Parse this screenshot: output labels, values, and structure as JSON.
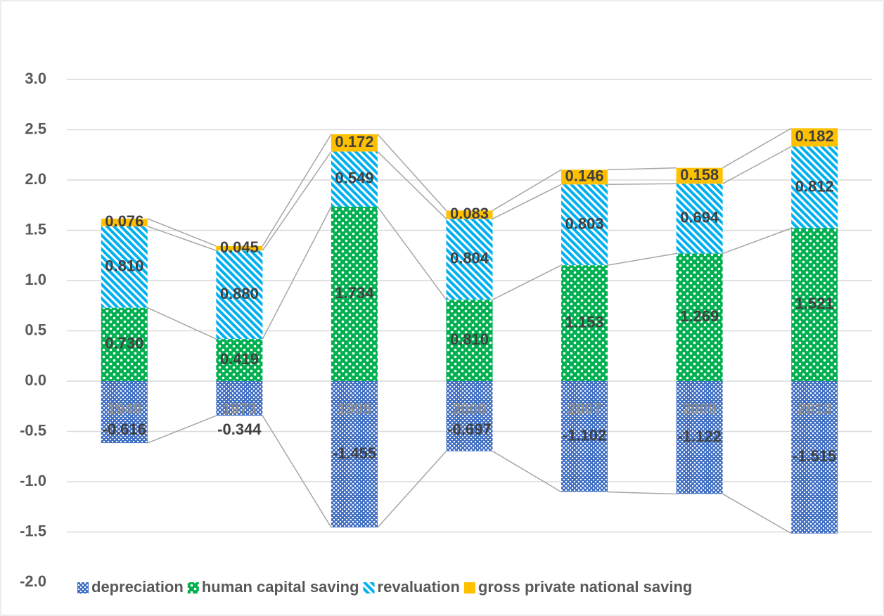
{
  "chart_data": {
    "type": "stacked-bar",
    "categories": [
      "1949",
      "1973",
      "1995",
      "2000",
      "2007",
      "2009",
      "2013"
    ],
    "series": [
      {
        "name": "depreciation",
        "color": "#4472c4",
        "values": [
          -0.616,
          -0.344,
          -1.455,
          -0.697,
          -1.102,
          -1.122,
          -1.515
        ],
        "value_labels": [
          "-0.616",
          "-0.344",
          "-1.455",
          "-0.697",
          "-1.102",
          "-1.122",
          "-1.515"
        ]
      },
      {
        "name": "human capital saving",
        "color": "#00b050",
        "values": [
          0.73,
          0.419,
          1.734,
          0.81,
          1.153,
          1.269,
          1.521
        ],
        "value_labels": [
          "0.730",
          "0.419",
          "1.734",
          "0.810",
          "1.153",
          "1.269",
          "1.521"
        ]
      },
      {
        "name": "revaluation",
        "color": "#00b0f0",
        "values": [
          0.81,
          0.88,
          0.549,
          0.804,
          0.803,
          0.694,
          0.812
        ],
        "value_labels": [
          "0.810",
          "0.880",
          "0.549",
          "0.804",
          "0.803",
          "0.694",
          "0.812"
        ]
      },
      {
        "name": "gross private national saving",
        "color": "#ffc000",
        "values": [
          0.076,
          0.045,
          0.172,
          0.083,
          0.146,
          0.158,
          0.182
        ],
        "value_labels": [
          "0.076",
          "0.045",
          "0.172",
          "0.083",
          "0.146",
          "0.158",
          "0.182"
        ]
      }
    ],
    "ylim": [
      -2.0,
      3.0
    ],
    "yticks": [
      {
        "value": -2,
        "label": "-2.0"
      },
      {
        "value": -1.5,
        "label": "-1.5"
      },
      {
        "value": -1,
        "label": "-1.0"
      },
      {
        "value": -0.5,
        "label": "-0.5"
      },
      {
        "value": 0,
        "label": "0.0"
      },
      {
        "value": 0.5,
        "label": "0.5"
      },
      {
        "value": 1,
        "label": "1.0"
      },
      {
        "value": 1.5,
        "label": "1.5"
      },
      {
        "value": 2,
        "label": "2.0"
      },
      {
        "value": 2.5,
        "label": "2.5"
      },
      {
        "value": 3,
        "label": "3.0"
      }
    ],
    "grid": true,
    "series_lines": true,
    "legend": "bottom"
  }
}
